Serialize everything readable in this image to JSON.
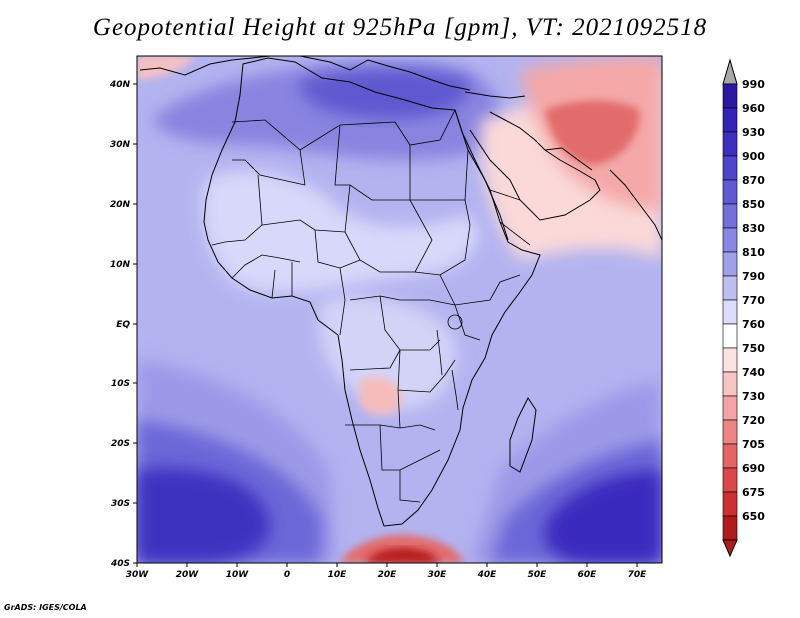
{
  "title": "Geopotential Height at 925hPa [gpm], VT: 2021092518",
  "credit": "GrADS: IGES/COLA",
  "lon_labels": [
    "30W",
    "20W",
    "10W",
    "0",
    "10E",
    "20E",
    "30E",
    "40E",
    "50E",
    "60E",
    "70E"
  ],
  "lat_labels": [
    "40N",
    "30N",
    "20N",
    "10N",
    "EQ",
    "10S",
    "20S",
    "30S",
    "40S"
  ],
  "colorbar": {
    "levels": [
      "990",
      "960",
      "930",
      "900",
      "870",
      "850",
      "830",
      "810",
      "790",
      "770",
      "760",
      "750",
      "740",
      "730",
      "720",
      "705",
      "690",
      "675",
      "650"
    ],
    "colors": [
      "#2a18a4",
      "#3322b6",
      "#3c2fc0",
      "#4d45ca",
      "#5f5ad3",
      "#7370db",
      "#8987e3",
      "#a09fea",
      "#bebef3",
      "#dddcfa",
      "#ffffff",
      "#fde2e2",
      "#f9c4c4",
      "#f4a4a4",
      "#ee8484",
      "#e56565",
      "#db4848",
      "#cc3030",
      "#b01c1c"
    ],
    "top_color": "#a8a8a8",
    "bottom_color": "#b01c1c"
  },
  "palette": {
    "base": "#b3b3f0",
    "light": "#d8d8fa",
    "lavender": "#a6a6ec",
    "mid": "#8a8ae2",
    "deep": "#5a56d0",
    "deepest": "#3a2cbe",
    "pink_light": "#fbd9d9",
    "pink": "#f4a8a8",
    "red": "#e26c6c",
    "dark_red": "#b81e1e"
  }
}
